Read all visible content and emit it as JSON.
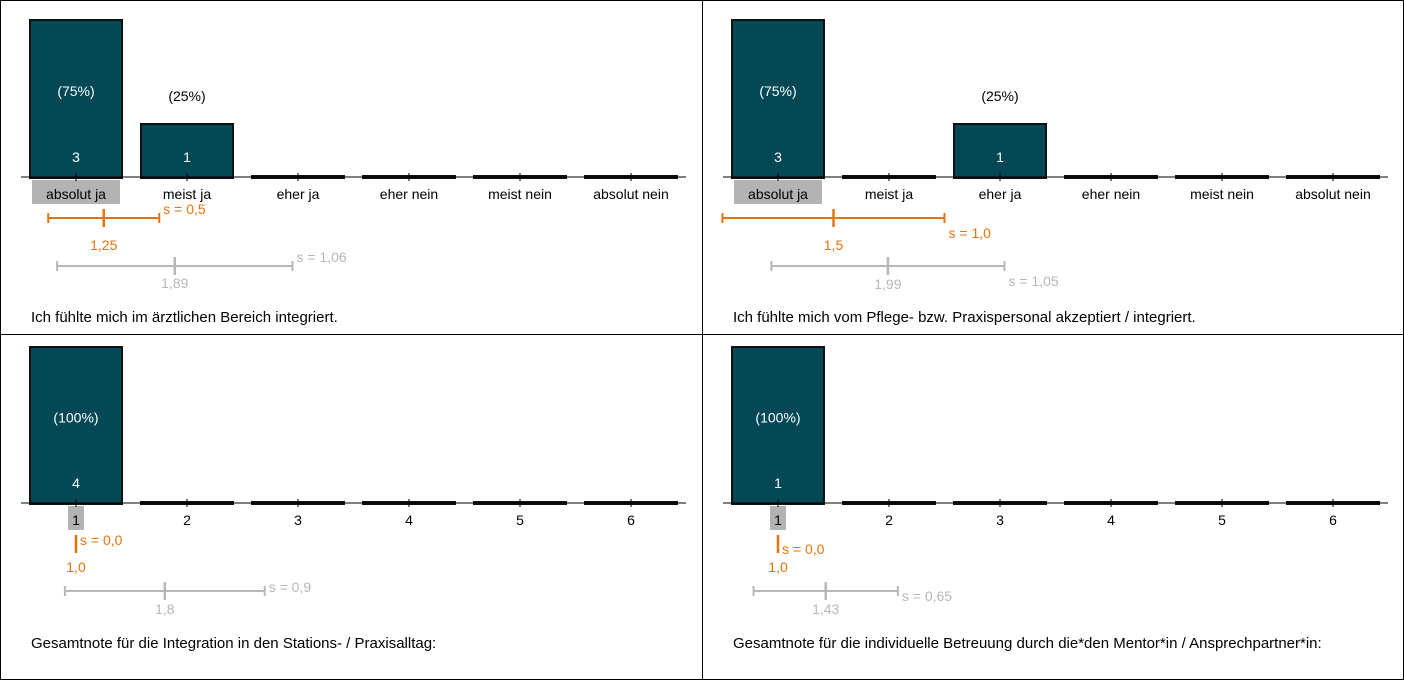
{
  "colors": {
    "bar": "#044856",
    "bar_border": "#111111",
    "text_in_bar": "#ffffff",
    "highlight": "#b3b3b3",
    "own_stat": "#e8730c",
    "ref_stat": "#b7b7b7"
  },
  "chart_data": [
    {
      "type": "bar",
      "categories": [
        "absolut ja",
        "meist ja",
        "eher ja",
        "eher nein",
        "meist nein",
        "absolut nein"
      ],
      "values": [
        3,
        1,
        0,
        0,
        0,
        0
      ],
      "value_labels": [
        "3",
        "1",
        "",
        "",
        "",
        ""
      ],
      "percent_labels": [
        "(75%)",
        "(25%)",
        "",
        "",
        "",
        ""
      ],
      "highlight_category": 0,
      "ylim": [
        0,
        3
      ],
      "own": {
        "mean": 1.25,
        "sd": 0.5,
        "mean_label": "1,25",
        "sd_label": "s = 0,5"
      },
      "reference": {
        "mean": 1.89,
        "sd": 1.06,
        "mean_label": "1,89",
        "sd_label": "s = 1,06"
      },
      "caption": "Ich fühlte mich im ärztlichen Bereich integriert."
    },
    {
      "type": "bar",
      "categories": [
        "absolut ja",
        "meist ja",
        "eher ja",
        "eher nein",
        "meist nein",
        "absolut nein"
      ],
      "values": [
        3,
        0,
        1,
        0,
        0,
        0
      ],
      "value_labels": [
        "3",
        "",
        "1",
        "",
        "",
        ""
      ],
      "percent_labels": [
        "(75%)",
        "",
        "(25%)",
        "",
        "",
        ""
      ],
      "highlight_category": 0,
      "ylim": [
        0,
        3
      ],
      "own": {
        "mean": 1.5,
        "sd": 1.0,
        "mean_label": "1,5",
        "sd_label": "s = 1,0"
      },
      "reference": {
        "mean": 1.99,
        "sd": 1.05,
        "mean_label": "1,99",
        "sd_label": "s = 1,05"
      },
      "caption": "Ich fühlte mich vom Pflege- bzw. Praxispersonal akzeptiert / integriert."
    },
    {
      "type": "bar",
      "categories": [
        "1",
        "2",
        "3",
        "4",
        "5",
        "6"
      ],
      "values": [
        4,
        0,
        0,
        0,
        0,
        0
      ],
      "value_labels": [
        "4",
        "",
        "",
        "",
        "",
        ""
      ],
      "percent_labels": [
        "(100%)",
        "",
        "",
        "",
        "",
        ""
      ],
      "highlight_category": 0,
      "ylim": [
        0,
        4
      ],
      "own": {
        "mean": 1.0,
        "sd": 0.0,
        "mean_label": "1,0",
        "sd_label": "s = 0,0"
      },
      "reference": {
        "mean": 1.8,
        "sd": 0.9,
        "mean_label": "1,8",
        "sd_label": "s = 0,9"
      },
      "caption": "Gesamtnote für die Integration in den Stations- / Praxisalltag:"
    },
    {
      "type": "bar",
      "categories": [
        "1",
        "2",
        "3",
        "4",
        "5",
        "6"
      ],
      "values": [
        1,
        0,
        0,
        0,
        0,
        0
      ],
      "value_labels": [
        "1",
        "",
        "",
        "",
        "",
        ""
      ],
      "percent_labels": [
        "(100%)",
        "",
        "",
        "",
        "",
        ""
      ],
      "highlight_category": 0,
      "ylim": [
        0,
        1
      ],
      "own": {
        "mean": 1.0,
        "sd": 0.0,
        "mean_label": "1,0",
        "sd_label": "s = 0,0"
      },
      "reference": {
        "mean": 1.43,
        "sd": 0.65,
        "mean_label": "1,43",
        "sd_label": "s = 0,65"
      },
      "caption": "Gesamtnote für die individuelle Betreuung durch die*den Mentor*in / Ansprechpartner*in:"
    }
  ]
}
